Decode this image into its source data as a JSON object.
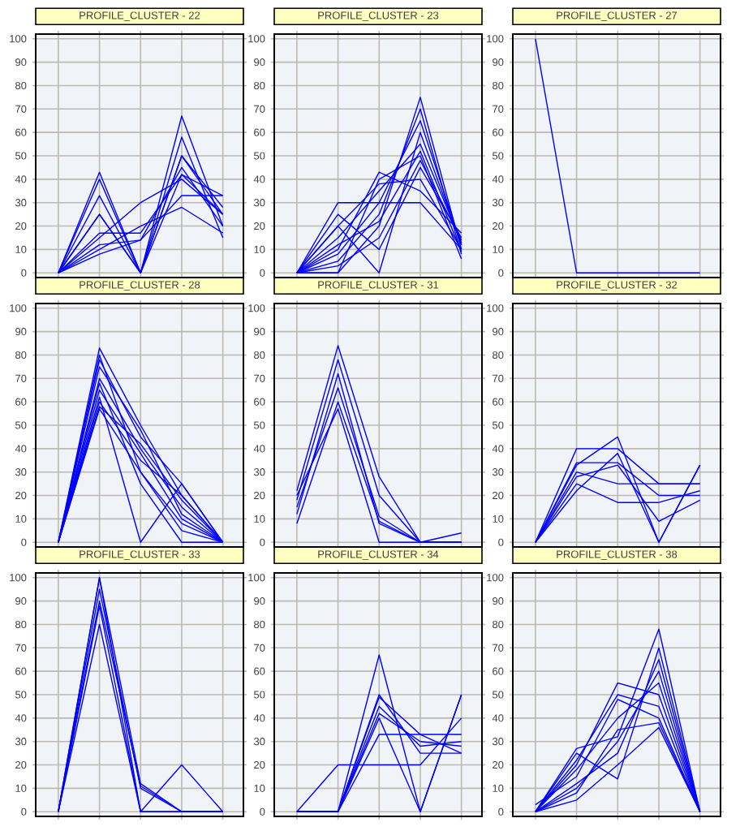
{
  "chart_data": [
    {
      "type": "line",
      "title": "PROFILE_CLUSTER - 22",
      "categories": [
        null,
        null,
        null,
        null,
        null
      ],
      "ylim": [
        -2,
        102
      ],
      "yticks": [
        0,
        10,
        20,
        30,
        40,
        50,
        60,
        70,
        80,
        90,
        100
      ],
      "grid": true,
      "series": [
        {
          "color": "#0000ff",
          "values": [
            0,
            43,
            0,
            42,
            25
          ]
        },
        {
          "color": "#0000ff",
          "values": [
            0,
            40,
            0,
            67,
            20
          ]
        },
        {
          "color": "#0000ff",
          "values": [
            0,
            33,
            0,
            58,
            15
          ]
        },
        {
          "color": "#0000ff",
          "values": [
            0,
            25,
            0,
            50,
            25
          ]
        },
        {
          "color": "#0000ff",
          "values": [
            0,
            17,
            17,
            42,
            33
          ]
        },
        {
          "color": "#0000ff",
          "values": [
            0,
            15,
            30,
            40,
            25
          ]
        },
        {
          "color": "#0000ff",
          "values": [
            0,
            12,
            14,
            33,
            33
          ]
        },
        {
          "color": "#0000ff",
          "values": [
            0,
            10,
            20,
            28,
            17
          ]
        },
        {
          "color": "#0000ff",
          "values": [
            0,
            25,
            0,
            50,
            28
          ]
        },
        {
          "color": "#0000ff",
          "values": [
            0,
            8,
            14,
            45,
            20
          ]
        }
      ]
    },
    {
      "type": "line",
      "title": "PROFILE_CLUSTER - 23",
      "categories": [
        null,
        null,
        null,
        null,
        null
      ],
      "ylim": [
        -2,
        102
      ],
      "yticks": [
        0,
        10,
        20,
        30,
        40,
        50,
        60,
        70,
        80,
        90,
        100
      ],
      "grid": true,
      "series": [
        {
          "color": "#0000ff",
          "values": [
            0,
            30,
            30,
            30,
            10
          ]
        },
        {
          "color": "#0000ff",
          "values": [
            0,
            0,
            20,
            75,
            10
          ]
        },
        {
          "color": "#0000ff",
          "values": [
            0,
            10,
            43,
            35,
            17
          ]
        },
        {
          "color": "#0000ff",
          "values": [
            0,
            20,
            0,
            60,
            12
          ]
        },
        {
          "color": "#0000ff",
          "values": [
            0,
            5,
            25,
            70,
            8
          ]
        },
        {
          "color": "#0000ff",
          "values": [
            0,
            15,
            35,
            55,
            13
          ]
        },
        {
          "color": "#0000ff",
          "values": [
            0,
            25,
            10,
            45,
            15
          ]
        },
        {
          "color": "#0000ff",
          "values": [
            0,
            0,
            40,
            50,
            6
          ]
        },
        {
          "color": "#0000ff",
          "values": [
            0,
            20,
            38,
            40,
            10
          ]
        },
        {
          "color": "#0000ff",
          "values": [
            0,
            8,
            30,
            65,
            12
          ]
        },
        {
          "color": "#0000ff",
          "values": [
            0,
            12,
            22,
            52,
            9
          ]
        },
        {
          "color": "#0000ff",
          "values": [
            0,
            3,
            15,
            48,
            14
          ]
        }
      ]
    },
    {
      "type": "line",
      "title": "PROFILE_CLUSTER - 27",
      "categories": [
        null,
        null,
        null,
        null,
        null
      ],
      "ylim": [
        -2,
        102
      ],
      "yticks": [
        0,
        10,
        20,
        30,
        40,
        50,
        60,
        70,
        80,
        90,
        100
      ],
      "grid": true,
      "series": [
        {
          "color": "#0000ff",
          "values": [
            100,
            0,
            0,
            0,
            0
          ]
        }
      ]
    },
    {
      "type": "line",
      "title": "PROFILE_CLUSTER - 28",
      "categories": [
        null,
        null,
        null,
        null,
        null
      ],
      "ylim": [
        -2,
        102
      ],
      "yticks": [
        0,
        10,
        20,
        30,
        40,
        50,
        60,
        70,
        80,
        90,
        100
      ],
      "grid": true,
      "series": [
        {
          "color": "#0000ff",
          "values": [
            0,
            83,
            50,
            20,
            0
          ]
        },
        {
          "color": "#0000ff",
          "values": [
            0,
            78,
            45,
            25,
            0
          ]
        },
        {
          "color": "#0000ff",
          "values": [
            0,
            70,
            40,
            15,
            0
          ]
        },
        {
          "color": "#0000ff",
          "values": [
            0,
            65,
            38,
            10,
            0
          ]
        },
        {
          "color": "#0000ff",
          "values": [
            0,
            60,
            35,
            20,
            0
          ]
        },
        {
          "color": "#0000ff",
          "values": [
            0,
            57,
            30,
            5,
            0
          ]
        },
        {
          "color": "#0000ff",
          "values": [
            0,
            62,
            0,
            25,
            0
          ]
        },
        {
          "color": "#0000ff",
          "values": [
            0,
            75,
            48,
            12,
            0
          ]
        },
        {
          "color": "#0000ff",
          "values": [
            0,
            68,
            25,
            0,
            0
          ]
        },
        {
          "color": "#0000ff",
          "values": [
            0,
            58,
            42,
            18,
            0
          ]
        },
        {
          "color": "#0000ff",
          "values": [
            0,
            80,
            30,
            8,
            0
          ]
        }
      ]
    },
    {
      "type": "line",
      "title": "PROFILE_CLUSTER - 31",
      "categories": [
        null,
        null,
        null,
        null,
        null
      ],
      "ylim": [
        -2,
        102
      ],
      "yticks": [
        0,
        10,
        20,
        30,
        40,
        50,
        60,
        70,
        80,
        90,
        100
      ],
      "grid": true,
      "series": [
        {
          "color": "#0000ff",
          "values": [
            22,
            84,
            28,
            0,
            0
          ]
        },
        {
          "color": "#0000ff",
          "values": [
            18,
            78,
            20,
            0,
            0
          ]
        },
        {
          "color": "#0000ff",
          "values": [
            15,
            66,
            11,
            0,
            4
          ]
        },
        {
          "color": "#0000ff",
          "values": [
            8,
            60,
            9,
            0,
            0
          ]
        },
        {
          "color": "#0000ff",
          "values": [
            20,
            57,
            0,
            0,
            0
          ]
        },
        {
          "color": "#0000ff",
          "values": [
            12,
            72,
            8,
            0,
            0
          ]
        }
      ]
    },
    {
      "type": "line",
      "title": "PROFILE_CLUSTER - 32",
      "categories": [
        null,
        null,
        null,
        null,
        null
      ],
      "ylim": [
        -2,
        102
      ],
      "yticks": [
        0,
        10,
        20,
        30,
        40,
        50,
        60,
        70,
        80,
        90,
        100
      ],
      "grid": true,
      "series": [
        {
          "color": "#0000ff",
          "values": [
            0,
            40,
            40,
            25,
            25
          ]
        },
        {
          "color": "#0000ff",
          "values": [
            0,
            33,
            45,
            0,
            33
          ]
        },
        {
          "color": "#0000ff",
          "values": [
            0,
            34,
            34,
            20,
            20
          ]
        },
        {
          "color": "#0000ff",
          "values": [
            0,
            25,
            17,
            17,
            22
          ]
        },
        {
          "color": "#0000ff",
          "values": [
            0,
            28,
            33,
            9,
            18
          ]
        },
        {
          "color": "#0000ff",
          "values": [
            0,
            22,
            38,
            0,
            33
          ]
        },
        {
          "color": "#0000ff",
          "values": [
            0,
            30,
            25,
            25,
            25
          ]
        }
      ]
    },
    {
      "type": "line",
      "title": "PROFILE_CLUSTER - 33",
      "categories": [
        null,
        null,
        null,
        null,
        null
      ],
      "ylim": [
        -2,
        102
      ],
      "yticks": [
        0,
        10,
        20,
        30,
        40,
        50,
        60,
        70,
        80,
        90,
        100
      ],
      "grid": true,
      "series": [
        {
          "color": "#0000ff",
          "values": [
            0,
            100,
            12,
            0,
            0
          ]
        },
        {
          "color": "#0000ff",
          "values": [
            0,
            95,
            10,
            0,
            0
          ]
        },
        {
          "color": "#0000ff",
          "values": [
            0,
            88,
            0,
            20,
            0
          ]
        },
        {
          "color": "#0000ff",
          "values": [
            0,
            80,
            0,
            0,
            0
          ]
        },
        {
          "color": "#0000ff",
          "values": [
            0,
            100,
            0,
            0,
            0
          ]
        },
        {
          "color": "#0000ff",
          "values": [
            0,
            90,
            11,
            0,
            0
          ]
        }
      ]
    },
    {
      "type": "line",
      "title": "PROFILE_CLUSTER - 34",
      "categories": [
        null,
        null,
        null,
        null,
        null
      ],
      "ylim": [
        -2,
        102
      ],
      "yticks": [
        0,
        10,
        20,
        30,
        40,
        50,
        60,
        70,
        80,
        90,
        100
      ],
      "grid": true,
      "series": [
        {
          "color": "#0000ff",
          "values": [
            0,
            0,
            67,
            0,
            50
          ]
        },
        {
          "color": "#0000ff",
          "values": [
            0,
            0,
            50,
            25,
            25
          ]
        },
        {
          "color": "#0000ff",
          "values": [
            0,
            0,
            49,
            33,
            33
          ]
        },
        {
          "color": "#0000ff",
          "values": [
            0,
            0,
            42,
            30,
            28
          ]
        },
        {
          "color": "#0000ff",
          "values": [
            0,
            20,
            20,
            20,
            40
          ]
        },
        {
          "color": "#0000ff",
          "values": [
            0,
            0,
            33,
            33,
            25
          ]
        },
        {
          "color": "#0000ff",
          "values": [
            0,
            0,
            40,
            0,
            50
          ]
        },
        {
          "color": "#0000ff",
          "values": [
            0,
            0,
            45,
            28,
            30
          ]
        }
      ]
    },
    {
      "type": "line",
      "title": "PROFILE_CLUSTER - 38",
      "categories": [
        null,
        null,
        null,
        null,
        null
      ],
      "ylim": [
        -2,
        102
      ],
      "yticks": [
        0,
        10,
        20,
        30,
        40,
        50,
        60,
        70,
        80,
        90,
        100
      ],
      "grid": true,
      "series": [
        {
          "color": "#0000ff",
          "values": [
            0,
            27,
            32,
            78,
            0
          ]
        },
        {
          "color": "#0000ff",
          "values": [
            0,
            20,
            55,
            50,
            0
          ]
        },
        {
          "color": "#0000ff",
          "values": [
            3,
            15,
            48,
            40,
            0
          ]
        },
        {
          "color": "#0000ff",
          "values": [
            0,
            10,
            30,
            60,
            0
          ]
        },
        {
          "color": "#0000ff",
          "values": [
            0,
            25,
            14,
            70,
            0
          ]
        },
        {
          "color": "#0000ff",
          "values": [
            0,
            5,
            20,
            36,
            0
          ]
        },
        {
          "color": "#0000ff",
          "values": [
            0,
            18,
            40,
            55,
            0
          ]
        },
        {
          "color": "#0000ff",
          "values": [
            0,
            22,
            50,
            45,
            0
          ]
        },
        {
          "color": "#0000ff",
          "values": [
            0,
            12,
            25,
            65,
            0
          ]
        },
        {
          "color": "#0000ff",
          "values": [
            0,
            8,
            35,
            38,
            0
          ]
        }
      ]
    }
  ]
}
